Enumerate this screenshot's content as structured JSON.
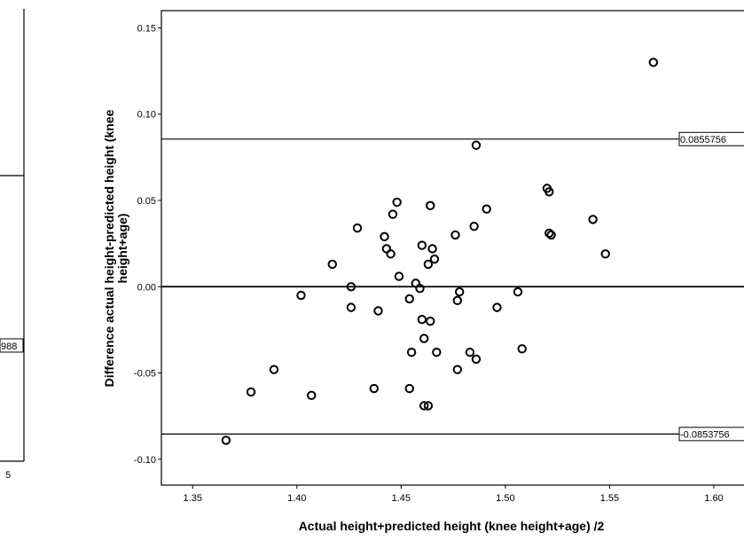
{
  "chart_data": [
    {
      "type": "scatter",
      "panel": "left-partial",
      "x_tick_labels": [
        "5"
      ],
      "reference_lines": [
        {
          "y_level": 0.55
        },
        {
          "label": "988",
          "y_level": 0.275
        }
      ]
    },
    {
      "type": "scatter",
      "panel": "main",
      "title": "",
      "xlabel": "Actual height+predicted height (knee height+age) /2",
      "ylabel": "Difference actual height-predicted height (knee height+age)",
      "ylabel_lines": [
        "Difference actual height-predicted height (knee",
        "height+age)"
      ],
      "xlim": [
        1.335,
        1.62
      ],
      "ylim": [
        -0.115,
        0.16
      ],
      "x_ticks": [
        1.35,
        1.4,
        1.45,
        1.5,
        1.55,
        1.6
      ],
      "x_tick_labels": [
        "1.35",
        "1.40",
        "1.45",
        "1.50",
        "1.55",
        "1.60"
      ],
      "y_ticks": [
        0.15,
        0.1,
        0.05,
        0.0,
        -0.05,
        -0.1
      ],
      "y_tick_labels": [
        "0.15",
        "0.10",
        "0.05",
        "0.00",
        "-0.05",
        "-0.10"
      ],
      "grid": false,
      "marker": "open-circle",
      "reference_lines": [
        {
          "y": 0.0855756,
          "label": "0.0855756"
        },
        {
          "y": 0.0,
          "label": ""
        },
        {
          "y": -0.0853756,
          "label": "-0.0853756"
        }
      ],
      "points": [
        {
          "x": 1.366,
          "y": -0.089
        },
        {
          "x": 1.378,
          "y": -0.061
        },
        {
          "x": 1.389,
          "y": -0.048
        },
        {
          "x": 1.402,
          "y": -0.005
        },
        {
          "x": 1.407,
          "y": -0.063
        },
        {
          "x": 1.417,
          "y": 0.013
        },
        {
          "x": 1.426,
          "y": 0.0
        },
        {
          "x": 1.426,
          "y": -0.012
        },
        {
          "x": 1.429,
          "y": 0.034
        },
        {
          "x": 1.437,
          "y": -0.059
        },
        {
          "x": 1.439,
          "y": -0.014
        },
        {
          "x": 1.442,
          "y": 0.029
        },
        {
          "x": 1.443,
          "y": 0.022
        },
        {
          "x": 1.445,
          "y": 0.019
        },
        {
          "x": 1.446,
          "y": 0.042
        },
        {
          "x": 1.448,
          "y": 0.049
        },
        {
          "x": 1.449,
          "y": 0.006
        },
        {
          "x": 1.454,
          "y": -0.007
        },
        {
          "x": 1.454,
          "y": -0.059
        },
        {
          "x": 1.455,
          "y": -0.038
        },
        {
          "x": 1.457,
          "y": 0.002
        },
        {
          "x": 1.459,
          "y": -0.001
        },
        {
          "x": 1.46,
          "y": 0.024
        },
        {
          "x": 1.46,
          "y": -0.019
        },
        {
          "x": 1.461,
          "y": -0.03
        },
        {
          "x": 1.461,
          "y": -0.069
        },
        {
          "x": 1.463,
          "y": -0.069
        },
        {
          "x": 1.463,
          "y": 0.013
        },
        {
          "x": 1.464,
          "y": 0.047
        },
        {
          "x": 1.464,
          "y": -0.02
        },
        {
          "x": 1.465,
          "y": 0.022
        },
        {
          "x": 1.466,
          "y": 0.016
        },
        {
          "x": 1.467,
          "y": -0.038
        },
        {
          "x": 1.476,
          "y": 0.03
        },
        {
          "x": 1.477,
          "y": -0.008
        },
        {
          "x": 1.477,
          "y": -0.048
        },
        {
          "x": 1.478,
          "y": -0.003
        },
        {
          "x": 1.483,
          "y": -0.038
        },
        {
          "x": 1.485,
          "y": 0.035
        },
        {
          "x": 1.486,
          "y": 0.082
        },
        {
          "x": 1.486,
          "y": -0.042
        },
        {
          "x": 1.491,
          "y": 0.045
        },
        {
          "x": 1.496,
          "y": -0.012
        },
        {
          "x": 1.506,
          "y": -0.003
        },
        {
          "x": 1.508,
          "y": -0.036
        },
        {
          "x": 1.52,
          "y": 0.057
        },
        {
          "x": 1.521,
          "y": 0.055
        },
        {
          "x": 1.521,
          "y": 0.031
        },
        {
          "x": 1.522,
          "y": 0.03
        },
        {
          "x": 1.542,
          "y": 0.039
        },
        {
          "x": 1.548,
          "y": 0.019
        },
        {
          "x": 1.571,
          "y": 0.13
        }
      ]
    }
  ]
}
